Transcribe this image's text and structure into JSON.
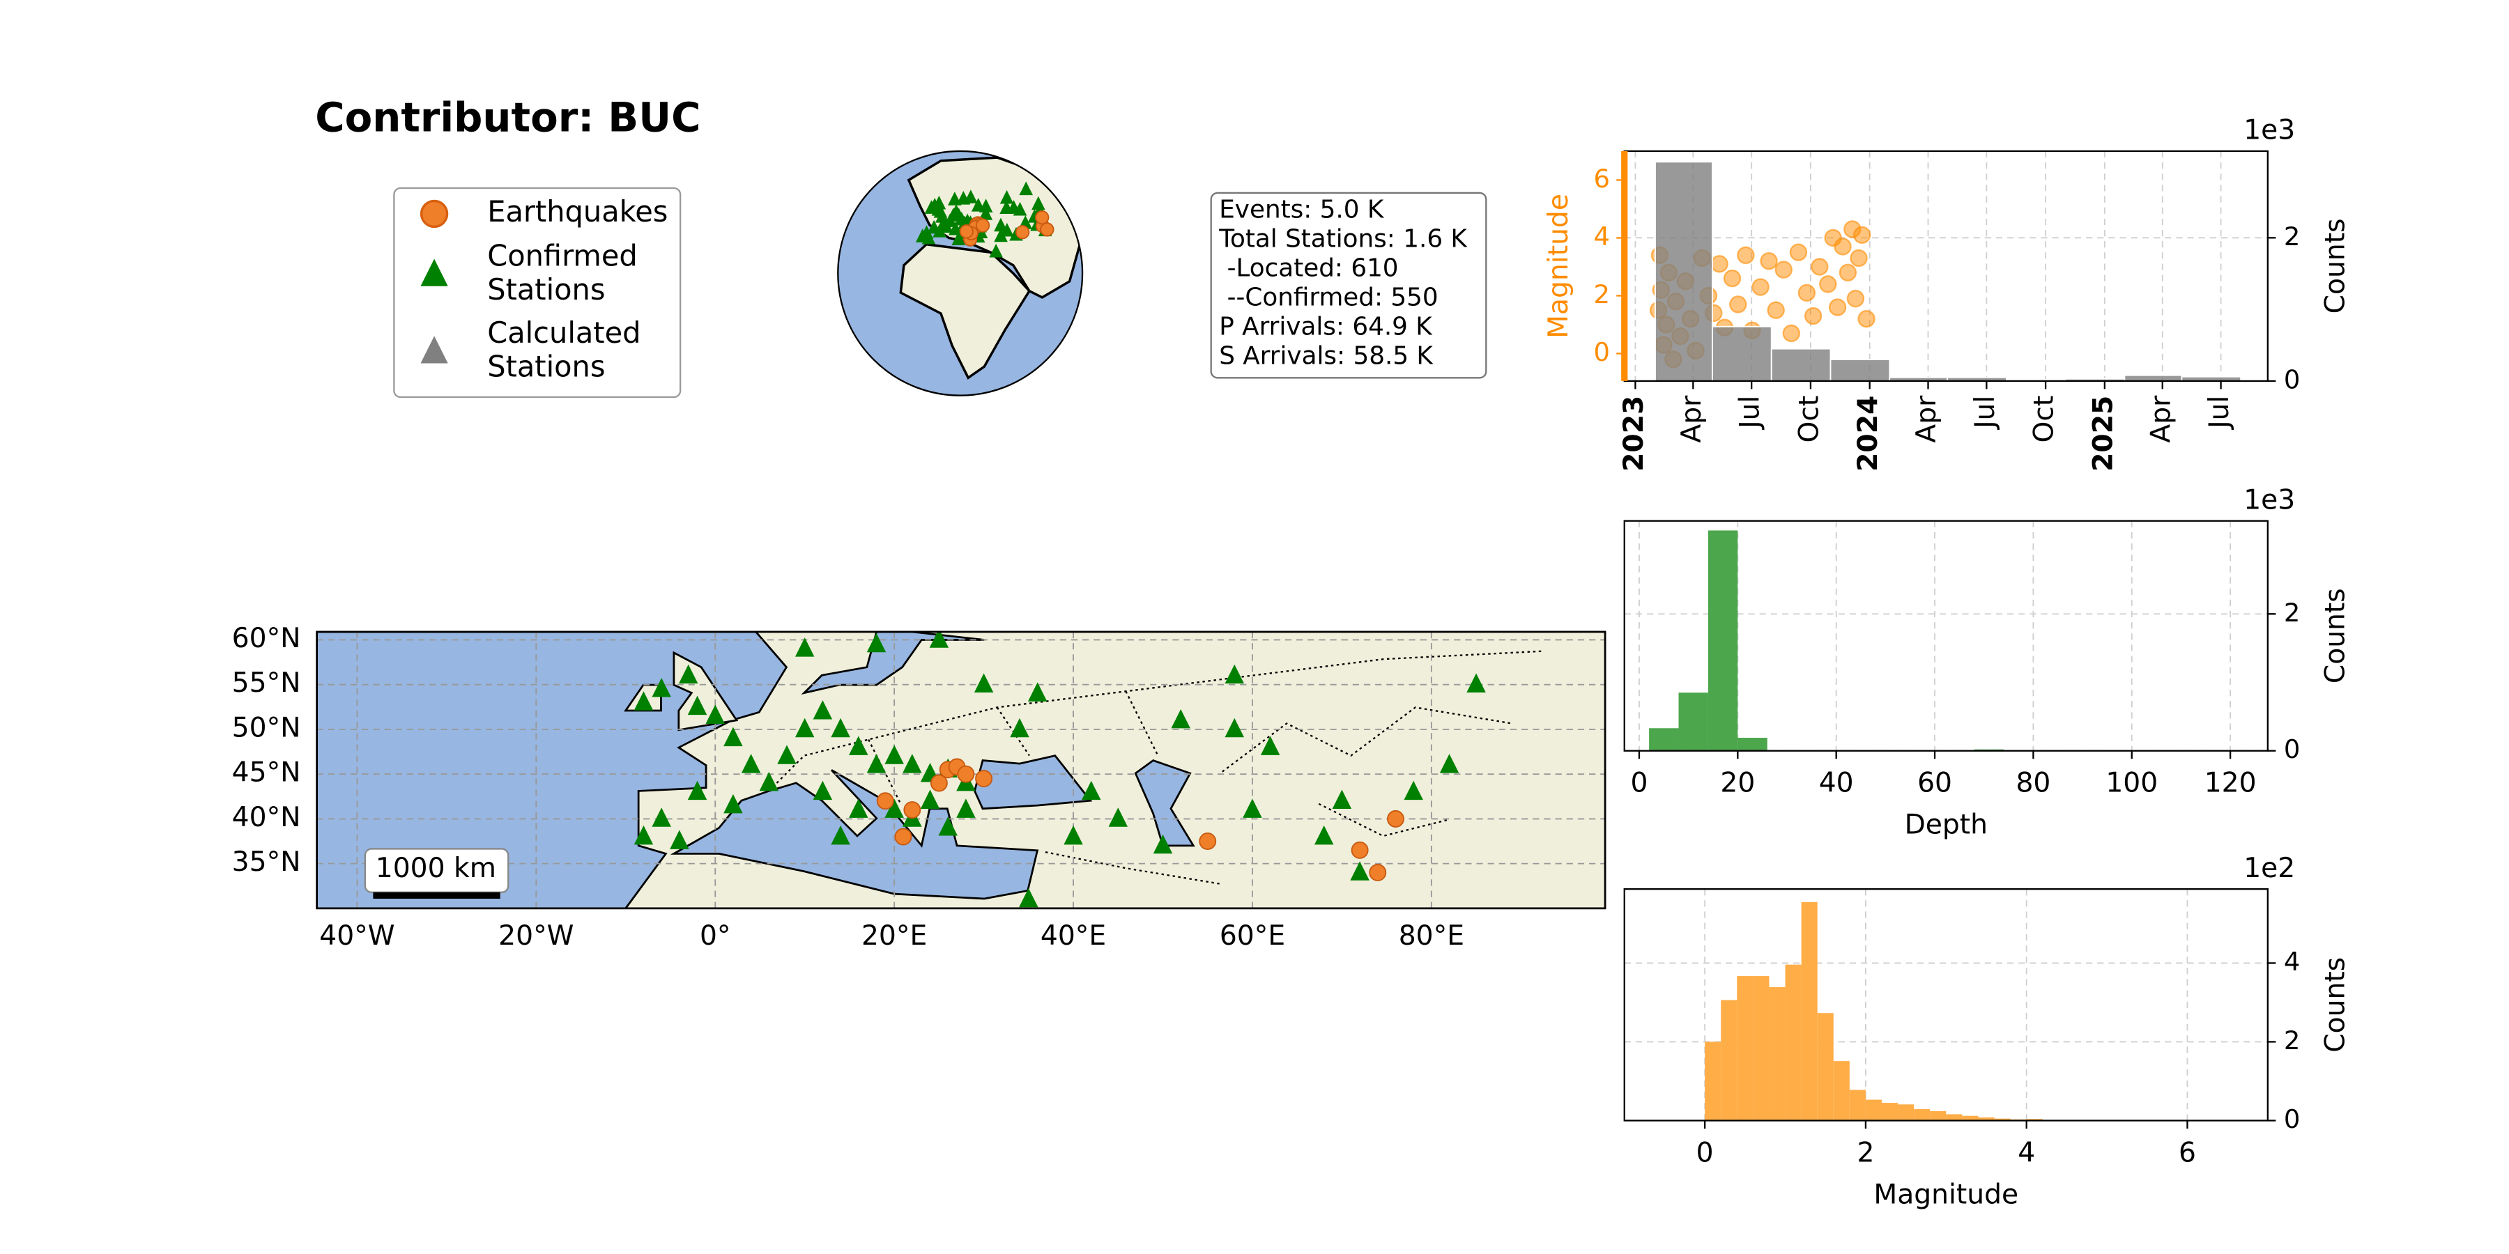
{
  "title": "Contributor: BUC",
  "legend": [
    {
      "lines": [
        "Earthquakes"
      ],
      "color": "#f07f2a",
      "marker": "circle"
    },
    {
      "lines": [
        "Confirmed",
        "Stations"
      ],
      "color": "#008000",
      "marker": "triangle"
    },
    {
      "lines": [
        "Calculated",
        "Stations"
      ],
      "color": "#808080",
      "marker": "triangle"
    }
  ],
  "info": [
    "Events: 5.0 K",
    "Total Stations: 1.6 K",
    " -Located: 610",
    " --Confirmed: 550",
    "P Arrivals: 64.9 K",
    "S Arrivals: 58.5 K"
  ],
  "chart_data": [
    {
      "type": "map",
      "xlim": [
        -44.5,
        99.4
      ],
      "ylim": [
        30,
        60.9
      ],
      "xticks": [
        {
          "value": -40,
          "label": "40°W"
        },
        {
          "value": -20,
          "label": "20°W"
        },
        {
          "value": 0,
          "label": "0°"
        },
        {
          "value": 20,
          "label": "20°E"
        },
        {
          "value": 40,
          "label": "40°E"
        },
        {
          "value": 60,
          "label": "60°E"
        },
        {
          "value": 80,
          "label": "80°E"
        }
      ],
      "yticks": [
        {
          "value": 35,
          "label": "35°N"
        },
        {
          "value": 40,
          "label": "40°N"
        },
        {
          "value": 45,
          "label": "45°N"
        },
        {
          "value": 50,
          "label": "50°N"
        },
        {
          "value": 55,
          "label": "55°N"
        },
        {
          "value": 60,
          "label": "60°N"
        }
      ],
      "grid": true,
      "scale_bar": "1000 km",
      "stations": {
        "color": "#008000",
        "lon": [
          -8,
          -6,
          -3,
          -2,
          0,
          2,
          4,
          -2,
          -6,
          -4,
          -8,
          2,
          6,
          8,
          10,
          12,
          14,
          16,
          18,
          20,
          22,
          24,
          26,
          28,
          24,
          22,
          20,
          26,
          28,
          16,
          12,
          14,
          10,
          18,
          25,
          30,
          36,
          34,
          42,
          45,
          40,
          50,
          52,
          58,
          60,
          70,
          78,
          82,
          85,
          68,
          72,
          35,
          58,
          62
        ],
        "lat": [
          53,
          54.5,
          56,
          52.5,
          51.5,
          49,
          46,
          43,
          40,
          37.5,
          38,
          41.5,
          44,
          47,
          50,
          52,
          50,
          48,
          46,
          47,
          46,
          45,
          45.5,
          44,
          42,
          40,
          41,
          39,
          41,
          41,
          43,
          38,
          59,
          59.5,
          60,
          55,
          54,
          50,
          43,
          40,
          38,
          37,
          51,
          56,
          41,
          42,
          43,
          46,
          55,
          38,
          34,
          31,
          50,
          48
        ]
      },
      "earthquakes": {
        "color": "#f07f2a",
        "lon": [
          26,
          27,
          28,
          25,
          30,
          21,
          55,
          72,
          74,
          76,
          22,
          19
        ],
        "lat": [
          45.5,
          45.8,
          45,
          44,
          44.5,
          38,
          37.5,
          36.5,
          34,
          40,
          41,
          42
        ]
      }
    },
    {
      "type": "time_histogram_scatter",
      "ylabel": "Magnitude",
      "y2label": "Counts",
      "y2_offset": "1e3",
      "axis_color": "#ff8c00",
      "bar_color": "#808080",
      "grid": true,
      "xlim": [
        "2022-12-15",
        "2025-09-12"
      ],
      "xticks": [
        {
          "value": "2023-01-01",
          "label": "2023"
        },
        {
          "value": "2023-04-01",
          "label": "Apr"
        },
        {
          "value": "2023-07-01",
          "label": "Jul"
        },
        {
          "value": "2023-10-01",
          "label": "Oct"
        },
        {
          "value": "2024-01-01",
          "label": "2024"
        },
        {
          "value": "2024-04-01",
          "label": "Apr"
        },
        {
          "value": "2024-07-01",
          "label": "Jul"
        },
        {
          "value": "2024-10-01",
          "label": "Oct"
        },
        {
          "value": "2025-01-01",
          "label": "2025"
        },
        {
          "value": "2025-04-01",
          "label": "Apr"
        },
        {
          "value": "2025-07-01",
          "label": "Jul"
        }
      ],
      "ylim": [
        -0.95,
        7
      ],
      "yticks": [
        0,
        2,
        4,
        6
      ],
      "y2lim": [
        0,
        3.21
      ],
      "y2ticks": [
        0,
        2
      ],
      "bins": [
        "2023-02-01",
        "2023-05-01",
        "2023-08-01",
        "2023-11-01",
        "2024-02-01",
        "2024-05-01",
        "2024-08-01",
        "2024-11-01",
        "2025-02-01",
        "2025-05-01",
        "2025-08-01"
      ],
      "counts": [
        3.06,
        0.76,
        0.45,
        0.3,
        0.05,
        0.05,
        0.02,
        0.03,
        0.08,
        0.06
      ],
      "points": {
        "x": [
          "2023-02-06",
          "2023-02-08",
          "2023-02-10",
          "2023-02-14",
          "2023-02-18",
          "2023-02-22",
          "2023-03-01",
          "2023-03-05",
          "2023-03-12",
          "2023-03-20",
          "2023-03-28",
          "2023-04-05",
          "2023-04-15",
          "2023-04-25",
          "2023-05-03",
          "2023-05-12",
          "2023-05-20",
          "2023-06-01",
          "2023-06-10",
          "2023-06-22",
          "2023-07-02",
          "2023-07-15",
          "2023-07-28",
          "2023-08-08",
          "2023-08-20",
          "2023-09-01",
          "2023-09-12",
          "2023-09-25",
          "2023-10-05",
          "2023-10-15",
          "2023-10-28",
          "2023-11-05",
          "2023-11-12",
          "2023-11-20",
          "2023-11-28",
          "2023-12-05",
          "2023-12-10",
          "2023-12-15",
          "2023-12-20",
          "2023-12-27"
        ],
        "y": [
          1.5,
          3.4,
          2.2,
          0.3,
          1.0,
          2.8,
          -0.2,
          1.8,
          0.6,
          2.5,
          1.2,
          0.1,
          3.3,
          2.0,
          1.4,
          3.1,
          0.9,
          2.6,
          1.7,
          3.4,
          0.8,
          2.3,
          3.2,
          1.5,
          2.9,
          0.7,
          3.5,
          2.1,
          1.3,
          3.0,
          2.4,
          4.0,
          1.6,
          3.7,
          2.8,
          4.3,
          1.9,
          3.3,
          4.1,
          1.2
        ]
      }
    },
    {
      "type": "histogram",
      "xlabel": "Depth",
      "ylabel": "Counts",
      "offset": "1e3",
      "color": "#4ca64c",
      "grid": true,
      "xlim": [
        -3,
        127.6
      ],
      "xticks": [
        0,
        20,
        40,
        60,
        80,
        100,
        120
      ],
      "ylim": [
        0,
        3.36
      ],
      "yticks": [
        0,
        2
      ],
      "bins": [
        2,
        8,
        14,
        20,
        26,
        32,
        38,
        44,
        50,
        56,
        62,
        68,
        74,
        80,
        86,
        92,
        98,
        104,
        110,
        116,
        122
      ],
      "counts": [
        0.33,
        0.85,
        3.22,
        0.19,
        0,
        0,
        0,
        0,
        0,
        0,
        0,
        0.02,
        0.01,
        0,
        0,
        0,
        0.01,
        0,
        0,
        0.01
      ]
    },
    {
      "type": "histogram",
      "xlabel": "Magnitude",
      "ylabel": "Counts",
      "offset": "1e2",
      "color": "#ffad47",
      "grid": true,
      "xlim": [
        -1,
        7
      ],
      "xticks": [
        0,
        2,
        4,
        6
      ],
      "ylim": [
        0,
        5.88
      ],
      "yticks": [
        0,
        2,
        4
      ],
      "bins": [
        0,
        0.2,
        0.4,
        0.6,
        0.8,
        1.0,
        1.2,
        1.4,
        1.6,
        1.8,
        2.0,
        2.2,
        2.4,
        2.6,
        2.8,
        3.0,
        3.2,
        3.4,
        3.6,
        3.8,
        4.0,
        4.2
      ],
      "counts": [
        2.0,
        3.06,
        3.67,
        3.67,
        3.39,
        3.96,
        5.55,
        2.73,
        1.51,
        0.78,
        0.53,
        0.45,
        0.41,
        0.29,
        0.24,
        0.16,
        0.12,
        0.08,
        0.05,
        0.03,
        0.04
      ]
    }
  ]
}
